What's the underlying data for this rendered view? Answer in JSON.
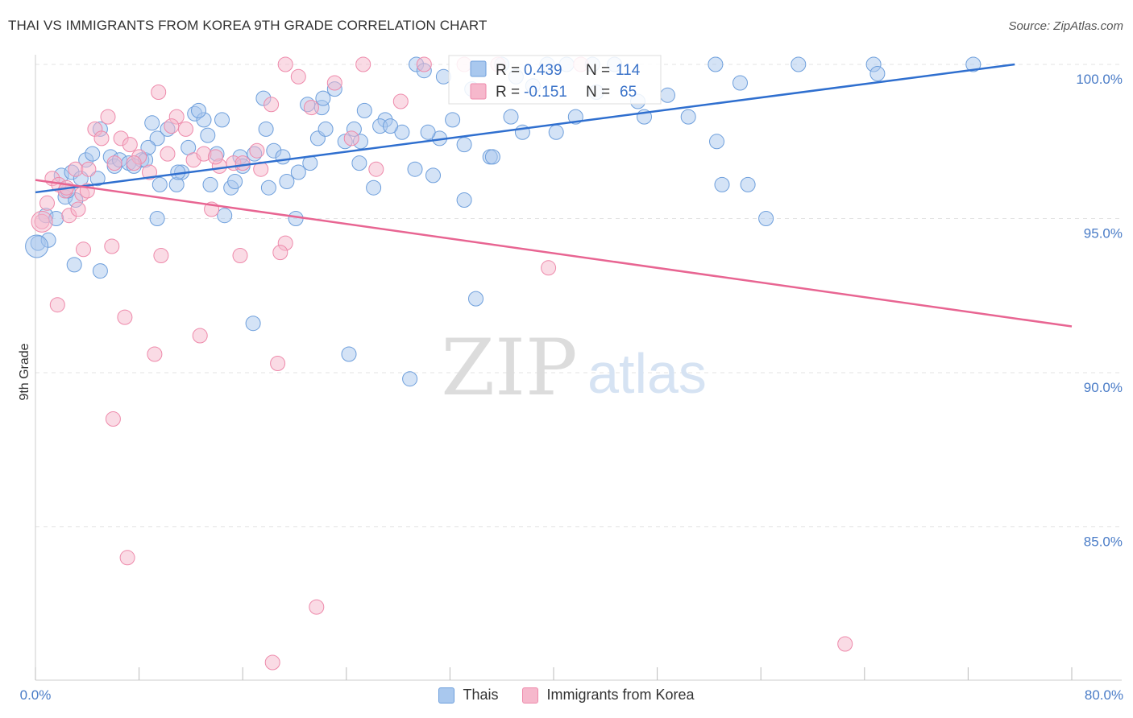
{
  "title": "THAI VS IMMIGRANTS FROM KOREA 9TH GRADE CORRELATION CHART",
  "source": "Source: ZipAtlas.com",
  "watermark": {
    "part1": "ZIP",
    "part2": "atlas"
  },
  "stats": {
    "row1": {
      "r_label": "R = ",
      "r_value": "0.439",
      "n_label": "N = ",
      "n_value": "114"
    },
    "row2": {
      "r_label": "R = ",
      "r_value": "-0.151",
      "n_label": "N = ",
      "n_value": "65"
    }
  },
  "legend": {
    "series1": "Thais",
    "series2": "Immigrants from Korea"
  },
  "colors": {
    "blue_fill": "#a9c8ee",
    "blue_stroke": "#6e9fdc",
    "blue_line": "#2f6fcf",
    "pink_fill": "#f6b8cc",
    "pink_stroke": "#ee8aab",
    "pink_line": "#e86592",
    "tick_label": "#4a7cc7",
    "grid": "#e3e3e3"
  },
  "chart_data": {
    "type": "scatter",
    "title": "THAI VS IMMIGRANTS FROM KOREA 9TH GRADE CORRELATION CHART",
    "xlabel": "",
    "ylabel": "9th Grade",
    "xlim": [
      0,
      80
    ],
    "ylim": [
      80.5,
      100.5
    ],
    "x_tick_labels": [
      "0.0%",
      "80.0%"
    ],
    "y_ticks": [
      85,
      90,
      95,
      100
    ],
    "y_tick_labels": [
      "85.0%",
      "90.0%",
      "95.0%",
      "100.0%"
    ],
    "grid": true,
    "legend_position": "bottom",
    "series": [
      {
        "name": "Thais",
        "color": "#a9c8ee",
        "trend": {
          "x": [
            0,
            75.6
          ],
          "y": [
            95.85,
            100.0
          ]
        },
        "points": [
          [
            0.2,
            94.2
          ],
          [
            1.0,
            94.3
          ],
          [
            0.8,
            95.1
          ],
          [
            1.6,
            95.0
          ],
          [
            2.3,
            95.7
          ],
          [
            2.0,
            96.4
          ],
          [
            2.8,
            96.5
          ],
          [
            3.1,
            95.6
          ],
          [
            3.5,
            96.3
          ],
          [
            2.5,
            95.9
          ],
          [
            3.9,
            96.9
          ],
          [
            4.4,
            97.1
          ],
          [
            4.8,
            96.3
          ],
          [
            5.0,
            97.9
          ],
          [
            5.8,
            97.0
          ],
          [
            6.1,
            96.7
          ],
          [
            6.5,
            96.9
          ],
          [
            7.2,
            96.8
          ],
          [
            8.2,
            96.9
          ],
          [
            8.5,
            96.9
          ],
          [
            9.0,
            98.1
          ],
          [
            9.4,
            97.6
          ],
          [
            9.6,
            96.1
          ],
          [
            10.2,
            97.9
          ],
          [
            10.9,
            96.1
          ],
          [
            11.3,
            96.5
          ],
          [
            11.8,
            97.3
          ],
          [
            12.3,
            98.4
          ],
          [
            13.0,
            98.2
          ],
          [
            13.5,
            96.1
          ],
          [
            13.3,
            97.7
          ],
          [
            14.0,
            97.1
          ],
          [
            14.6,
            95.1
          ],
          [
            15.1,
            96.0
          ],
          [
            15.8,
            97.0
          ],
          [
            16.0,
            96.7
          ],
          [
            16.9,
            97.1
          ],
          [
            17.8,
            97.9
          ],
          [
            18.4,
            97.2
          ],
          [
            19.4,
            96.2
          ],
          [
            20.3,
            96.5
          ],
          [
            21.0,
            98.7
          ],
          [
            21.8,
            97.6
          ],
          [
            22.1,
            98.6
          ],
          [
            22.4,
            97.9
          ],
          [
            23.1,
            99.2
          ],
          [
            23.9,
            97.5
          ],
          [
            25.0,
            96.8
          ],
          [
            25.1,
            97.5
          ],
          [
            26.1,
            96.0
          ],
          [
            27.0,
            98.2
          ],
          [
            28.3,
            97.8
          ],
          [
            29.3,
            96.6
          ],
          [
            30.7,
            96.4
          ],
          [
            31.2,
            97.6
          ],
          [
            32.2,
            98.2
          ],
          [
            33.1,
            97.4
          ],
          [
            33.7,
            99.2
          ],
          [
            35.1,
            97.0
          ],
          [
            36.7,
            98.3
          ],
          [
            37.6,
            97.8
          ],
          [
            38.4,
            99.3
          ],
          [
            40.2,
            97.8
          ],
          [
            41.7,
            98.3
          ],
          [
            43.3,
            99.1
          ],
          [
            47.0,
            98.3
          ],
          [
            50.4,
            98.3
          ],
          [
            52.5,
            100.0
          ],
          [
            54.4,
            99.4
          ],
          [
            55.0,
            96.1
          ],
          [
            56.4,
            95.0
          ],
          [
            64.7,
            100.0
          ],
          [
            72.4,
            100.0
          ],
          [
            5.0,
            93.3
          ],
          [
            3.0,
            93.5
          ],
          [
            9.4,
            95.0
          ],
          [
            16.8,
            91.6
          ],
          [
            24.2,
            90.6
          ],
          [
            28.9,
            89.8
          ],
          [
            34.0,
            92.4
          ],
          [
            11.0,
            96.5
          ],
          [
            15.4,
            96.2
          ],
          [
            17.6,
            98.9
          ],
          [
            19.1,
            97.0
          ],
          [
            21.2,
            96.8
          ],
          [
            26.6,
            98.0
          ],
          [
            27.4,
            98.0
          ],
          [
            31.5,
            99.6
          ],
          [
            33.1,
            95.6
          ],
          [
            35.3,
            97.0
          ],
          [
            36.0,
            100.0
          ],
          [
            37.1,
            99.6
          ],
          [
            39.5,
            100.0
          ],
          [
            41.0,
            100.0
          ],
          [
            46.5,
            98.8
          ],
          [
            48.8,
            99.0
          ],
          [
            52.6,
            97.5
          ],
          [
            53.0,
            96.1
          ],
          [
            58.9,
            100.0
          ],
          [
            65.0,
            99.7
          ],
          [
            29.4,
            100.0
          ],
          [
            30.0,
            99.8
          ],
          [
            43.0,
            100.0
          ],
          [
            44.7,
            100.0
          ],
          [
            12.6,
            98.5
          ],
          [
            14.4,
            98.2
          ],
          [
            18.0,
            96.0
          ],
          [
            22.2,
            98.9
          ],
          [
            24.6,
            97.9
          ],
          [
            30.3,
            97.8
          ],
          [
            7.6,
            96.7
          ],
          [
            8.7,
            97.3
          ],
          [
            20.1,
            95.0
          ],
          [
            25.4,
            98.5
          ]
        ]
      },
      {
        "name": "Immigrants from Korea",
        "color": "#f6b8cc",
        "trend": {
          "x": [
            0,
            80
          ],
          "y": [
            96.25,
            91.5
          ]
        },
        "points": [
          [
            0.5,
            94.9
          ],
          [
            0.9,
            95.5
          ],
          [
            1.3,
            96.3
          ],
          [
            1.8,
            96.1
          ],
          [
            2.3,
            95.9
          ],
          [
            2.6,
            95.1
          ],
          [
            3.1,
            96.6
          ],
          [
            3.6,
            95.8
          ],
          [
            4.1,
            96.6
          ],
          [
            4.6,
            97.9
          ],
          [
            5.1,
            97.6
          ],
          [
            5.6,
            98.3
          ],
          [
            6.1,
            96.8
          ],
          [
            6.6,
            97.6
          ],
          [
            7.3,
            97.4
          ],
          [
            8.0,
            97.0
          ],
          [
            8.8,
            96.5
          ],
          [
            9.5,
            99.1
          ],
          [
            10.2,
            97.1
          ],
          [
            10.9,
            98.3
          ],
          [
            11.6,
            97.9
          ],
          [
            12.2,
            96.9
          ],
          [
            13.0,
            97.1
          ],
          [
            13.6,
            95.3
          ],
          [
            14.2,
            96.7
          ],
          [
            15.3,
            96.8
          ],
          [
            16.0,
            96.8
          ],
          [
            17.1,
            97.2
          ],
          [
            18.2,
            98.7
          ],
          [
            19.3,
            100.0
          ],
          [
            20.3,
            99.6
          ],
          [
            21.3,
            98.6
          ],
          [
            23.1,
            99.4
          ],
          [
            24.4,
            97.6
          ],
          [
            25.3,
            100.0
          ],
          [
            30.0,
            100.0
          ],
          [
            33.1,
            100.0
          ],
          [
            35.7,
            100.0
          ],
          [
            28.2,
            98.8
          ],
          [
            42.1,
            100.0
          ],
          [
            3.7,
            94.0
          ],
          [
            5.9,
            94.1
          ],
          [
            9.7,
            93.8
          ],
          [
            15.8,
            93.8
          ],
          [
            19.3,
            94.2
          ],
          [
            18.9,
            93.9
          ],
          [
            39.6,
            93.4
          ],
          [
            1.7,
            92.2
          ],
          [
            6.9,
            91.8
          ],
          [
            9.2,
            90.6
          ],
          [
            12.7,
            91.2
          ],
          [
            18.7,
            90.3
          ],
          [
            6.0,
            88.5
          ],
          [
            7.1,
            84.0
          ],
          [
            21.7,
            82.4
          ],
          [
            18.3,
            80.6
          ],
          [
            62.5,
            81.2
          ],
          [
            2.4,
            96.0
          ],
          [
            3.3,
            95.3
          ],
          [
            4.0,
            95.9
          ],
          [
            7.6,
            96.8
          ],
          [
            10.5,
            98.0
          ],
          [
            13.9,
            97.0
          ],
          [
            17.4,
            96.6
          ],
          [
            26.3,
            96.6
          ]
        ]
      }
    ]
  }
}
